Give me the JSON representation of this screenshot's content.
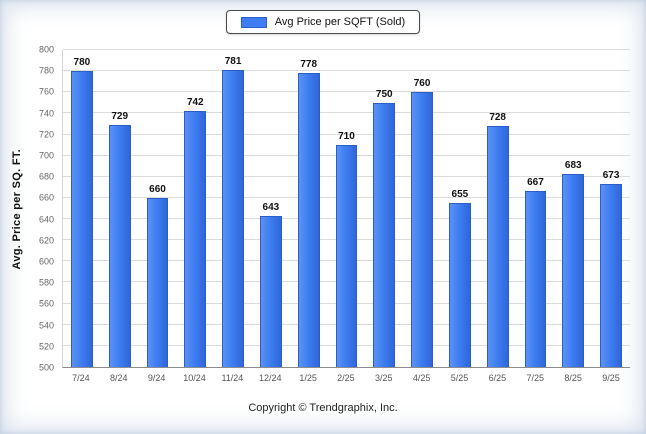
{
  "colors": {
    "bar": "#3e7ef2",
    "bar-border": "#2b5fc7",
    "grid": "#dcdcdc",
    "axis": "#8c8c8c"
  },
  "footer": {
    "text": "Copyright © Trendgraphix, Inc."
  },
  "chart_data": {
    "type": "bar",
    "title": "",
    "legend": [
      "Avg Price per SQFT (Sold)"
    ],
    "legend_position": "top",
    "categories": [
      "7/24",
      "8/24",
      "9/24",
      "10/24",
      "11/24",
      "12/24",
      "1/25",
      "2/25",
      "3/25",
      "4/25",
      "5/25",
      "6/25",
      "7/25",
      "8/25",
      "9/25"
    ],
    "values": [
      780,
      729,
      660,
      742,
      781,
      643,
      778,
      710,
      750,
      760,
      655,
      728,
      667,
      683,
      673
    ],
    "xlabel": "",
    "ylabel": "Avg. Price per SQ. FT.",
    "ylim": [
      500,
      800
    ],
    "ytick_step": 20,
    "grid": true
  }
}
